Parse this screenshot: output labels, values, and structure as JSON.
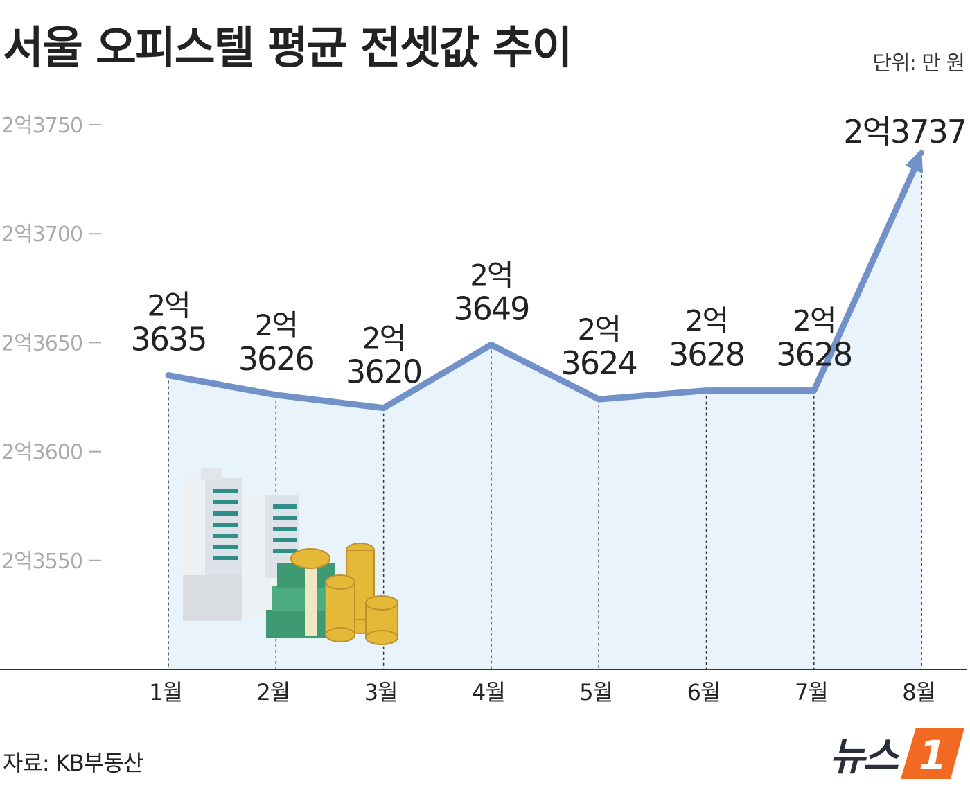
{
  "header": {
    "title": "서울 오피스텔 평균 전셋값 추이",
    "unit": "단위: 만 원"
  },
  "footer": {
    "source": "자료: KB부동산",
    "logo_text": "뉴스",
    "logo_mark": "1"
  },
  "colors": {
    "line": "#7391c9",
    "area": "#e9f3fb",
    "map": "#d8e8f6",
    "axis": "#333333",
    "tick_label": "#aaaaaa",
    "logo_accent": "#f26a21"
  },
  "chart_data": {
    "type": "area",
    "title": "서울 오피스텔 평균 전셋값 추이",
    "xlabel": "",
    "ylabel": "",
    "categories": [
      "1월",
      "2월",
      "3월",
      "4월",
      "5월",
      "6월",
      "7월",
      "8월"
    ],
    "values": [
      23635,
      23626,
      23620,
      23649,
      23624,
      23628,
      23628,
      23737
    ],
    "data_labels": [
      [
        "2억",
        "3635"
      ],
      [
        "2억",
        "3626"
      ],
      [
        "2억",
        "3620"
      ],
      [
        "2억",
        "3649"
      ],
      [
        "2억",
        "3624"
      ],
      [
        "2억",
        "3628"
      ],
      [
        "2억",
        "3628"
      ],
      [
        "2억3737"
      ]
    ],
    "ylim": [
      23500,
      23750
    ],
    "y_ticks": [
      {
        "value": 23550,
        "label": "2억3550"
      },
      {
        "value": 23600,
        "label": "2억3600"
      },
      {
        "value": 23650,
        "label": "2억3650"
      },
      {
        "value": 23700,
        "label": "2억3700"
      },
      {
        "value": 23750,
        "label": "2억3750"
      }
    ],
    "grid": false,
    "legend": "none"
  }
}
